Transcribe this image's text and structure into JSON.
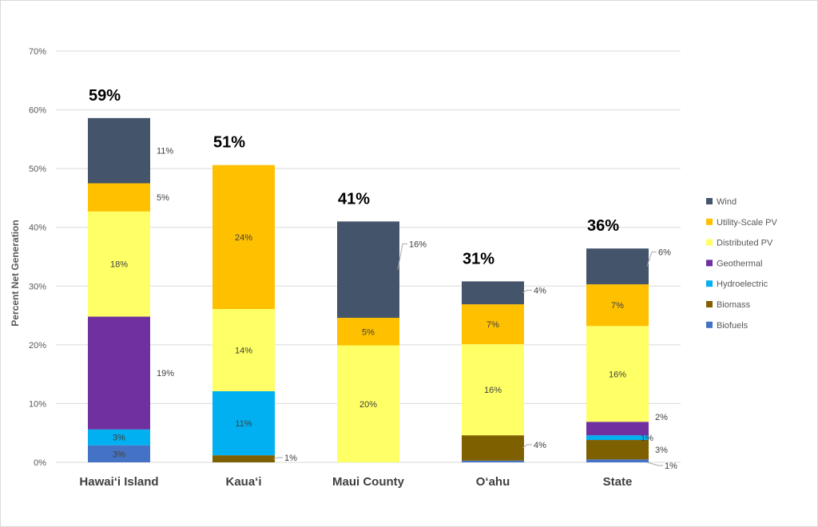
{
  "chart_data": {
    "type": "bar",
    "stacked": true,
    "title": "",
    "xlabel": "",
    "ylabel": "Percent Net Generation",
    "ylim": [
      0,
      70
    ],
    "yticks": [
      "0%",
      "10%",
      "20%",
      "30%",
      "40%",
      "50%",
      "60%",
      "70%"
    ],
    "grid": true,
    "legend_position": "right",
    "categories": [
      "Hawai‘i Island",
      "Kaua‘i",
      "Maui County",
      "O‘ahu",
      "State"
    ],
    "totals": [
      "59%",
      "51%",
      "41%",
      "31%",
      "36%"
    ],
    "series": [
      {
        "name": "Biofuels",
        "color": "#4472c4",
        "values": [
          2.9,
          0,
          0,
          0.3,
          0.5
        ],
        "labels": [
          "3%",
          "",
          "",
          "",
          "1%"
        ],
        "label_pos": [
          "inside",
          "",
          "",
          "",
          "leader"
        ]
      },
      {
        "name": "Biomass",
        "color": "#7f6000",
        "values": [
          0,
          1.2,
          0,
          4.3,
          3.3
        ],
        "labels": [
          "",
          "1%",
          "",
          "4%",
          "3%"
        ],
        "label_pos": [
          "",
          "leader",
          "",
          "leader",
          "right"
        ]
      },
      {
        "name": "Hydroelectric",
        "color": "#00b0f0",
        "values": [
          2.7,
          10.9,
          0,
          0,
          0.8
        ],
        "labels": [
          "3%",
          "11%",
          "",
          "",
          "1%"
        ],
        "label_pos": [
          "inside",
          "inside",
          "",
          "",
          "edge"
        ]
      },
      {
        "name": "Geothermal",
        "color": "#7030a0",
        "values": [
          19.2,
          0,
          0,
          0,
          2.3
        ],
        "labels": [
          "19%",
          "",
          "",
          "",
          "2%"
        ],
        "label_pos": [
          "right",
          "",
          "",
          "",
          "right-up"
        ]
      },
      {
        "name": "Distributed PV",
        "color": "#ffff66",
        "values": [
          17.9,
          14.0,
          19.9,
          15.5,
          16.3
        ],
        "labels": [
          "18%",
          "14%",
          "20%",
          "16%",
          "16%"
        ],
        "label_pos": [
          "inside",
          "inside",
          "inside",
          "inside",
          "inside"
        ]
      },
      {
        "name": "Utility-Scale PV",
        "color": "#ffc000",
        "values": [
          4.8,
          24.5,
          4.7,
          6.8,
          7.1
        ],
        "labels": [
          "5%",
          "24%",
          "5%",
          "7%",
          "7%"
        ],
        "label_pos": [
          "right",
          "inside",
          "inside",
          "inside",
          "inside"
        ]
      },
      {
        "name": "Wind",
        "color": "#44546a",
        "values": [
          11.1,
          0,
          16.4,
          3.9,
          6.1
        ],
        "labels": [
          "11%",
          "",
          "16%",
          "4%",
          "6%"
        ],
        "label_pos": [
          "right",
          "",
          "leader",
          "leader",
          "leader"
        ]
      }
    ]
  }
}
